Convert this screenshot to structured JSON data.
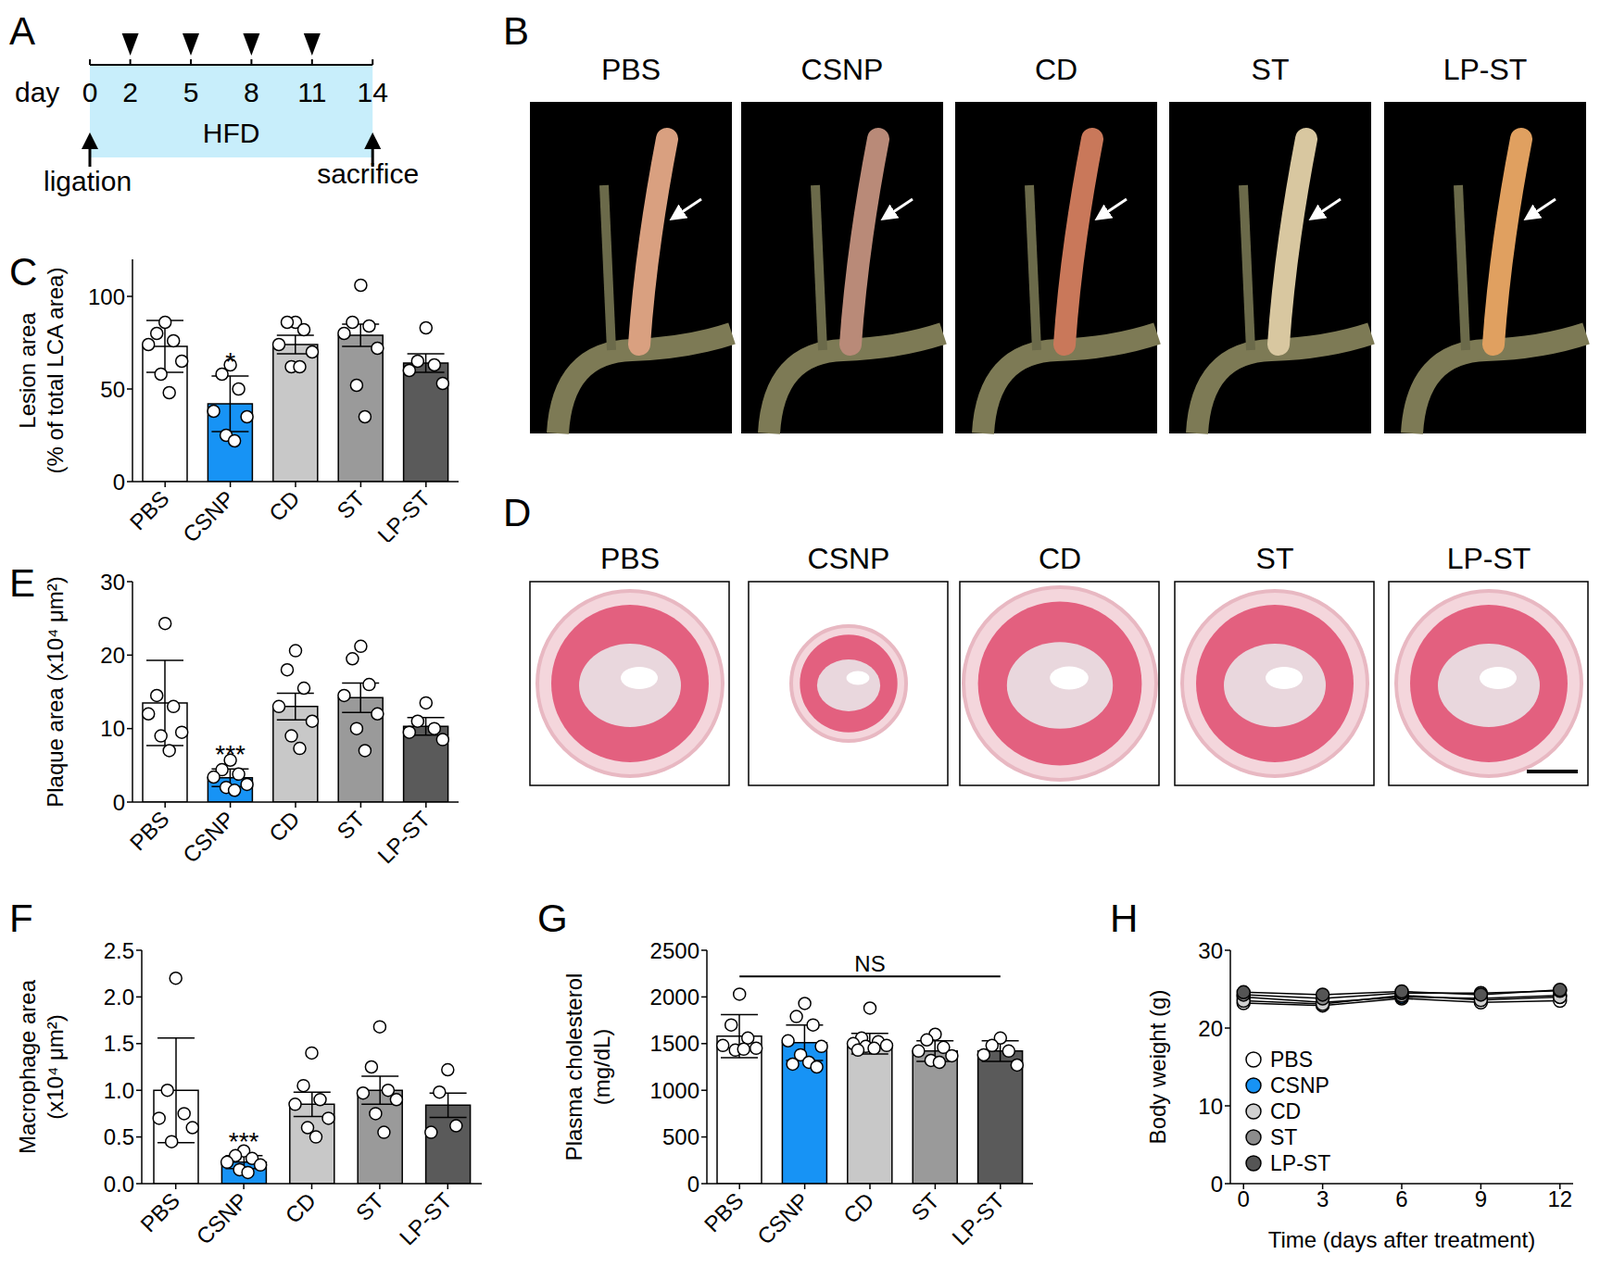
{
  "diagram": {
    "panel": "A",
    "axis_label": "day",
    "days": [
      0,
      2,
      5,
      8,
      11,
      14
    ],
    "injection_days": [
      2,
      5,
      8,
      11
    ],
    "band_label": "HFD",
    "start_label": "ligation",
    "end_label": "sacrifice"
  },
  "images": [
    {
      "panel": "B",
      "titles": [
        "PBS",
        "CSNP",
        "CD",
        "ST",
        "LP-ST"
      ]
    },
    {
      "panel": "D",
      "titles": [
        "PBS",
        "CSNP",
        "CD",
        "ST",
        "LP-ST"
      ]
    }
  ],
  "chart_data": [
    {
      "panel": "C",
      "type": "bar",
      "y_label": [
        "Lesion area",
        "(% of total LCA area)"
      ],
      "categories": [
        "PBS",
        "CSNP",
        "CD",
        "ST",
        "LP-ST"
      ],
      "values": [
        73,
        42,
        74,
        79,
        64
      ],
      "error": [
        14,
        15,
        5,
        6,
        5
      ],
      "points": [
        [
          86,
          80,
          76,
          74,
          65,
          58,
          48
        ],
        [
          63,
          58,
          50,
          38,
          35,
          25,
          22
        ],
        [
          86,
          86,
          82,
          74,
          70,
          62,
          62
        ],
        [
          106,
          86,
          84,
          80,
          72,
          52,
          35
        ],
        [
          83,
          65,
          63,
          60,
          53
        ]
      ],
      "colors": [
        "#ffffff",
        "#1793f5",
        "#c8c8c8",
        "#9a9a9a",
        "#5a5a5a"
      ],
      "significance": [
        null,
        "*",
        null,
        null,
        null
      ],
      "ylim": [
        0,
        120
      ],
      "yticks": [
        0,
        50,
        100
      ]
    },
    {
      "panel": "E",
      "type": "bar",
      "y_label": [
        "Plaque area (x10⁴ μm²)"
      ],
      "categories": [
        "PBS",
        "CSNP",
        "CD",
        "ST",
        "LP-ST"
      ],
      "values": [
        13.5,
        3.3,
        13,
        14.2,
        10.3
      ],
      "error": [
        5.8,
        1.2,
        1.8,
        2,
        1.2
      ],
      "points": [
        [
          24.3,
          14.5,
          13,
          12,
          9.5,
          9,
          7
        ],
        [
          5.7,
          4.4,
          3.8,
          3.4,
          2.4,
          2,
          1.6
        ],
        [
          20.6,
          18,
          15.5,
          13,
          11,
          9,
          7.3
        ],
        [
          21.2,
          19.5,
          16,
          14.5,
          12,
          10,
          7
        ],
        [
          13.5,
          11,
          10,
          9.5,
          8.5
        ]
      ],
      "colors": [
        "#ffffff",
        "#1793f5",
        "#c8c8c8",
        "#9a9a9a",
        "#5a5a5a"
      ],
      "significance": [
        null,
        "***",
        null,
        null,
        null
      ],
      "ylim": [
        0,
        30
      ],
      "yticks": [
        0,
        10,
        20,
        30
      ]
    },
    {
      "panel": "F",
      "type": "bar",
      "y_label": [
        "Macrophage area",
        "(x10⁴ μm²)"
      ],
      "categories": [
        "PBS",
        "CSNP",
        "CD",
        "ST",
        "LP-ST"
      ],
      "values": [
        1.0,
        0.23,
        0.85,
        1.0,
        0.84
      ],
      "error": [
        0.56,
        0.07,
        0.13,
        0.15,
        0.13
      ],
      "points": [
        [
          2.2,
          1.0,
          0.75,
          0.7,
          0.6,
          0.45
        ],
        [
          0.35,
          0.3,
          0.27,
          0.23,
          0.2,
          0.15,
          0.12
        ],
        [
          1.4,
          1.05,
          0.9,
          0.85,
          0.7,
          0.6,
          0.5
        ],
        [
          1.68,
          1.25,
          1.0,
          0.97,
          0.9,
          0.75,
          0.55
        ],
        [
          1.22,
          0.98,
          0.62,
          0.55
        ]
      ],
      "colors": [
        "#ffffff",
        "#1793f5",
        "#c8c8c8",
        "#9a9a9a",
        "#5a5a5a"
      ],
      "significance": [
        null,
        "***",
        null,
        null,
        null
      ],
      "ylim": [
        0,
        2.5
      ],
      "yticks": [
        {
          "value": 0,
          "label": "0.0"
        },
        0.5,
        {
          "value": 1,
          "label": "1.0"
        },
        1.5,
        {
          "value": 2,
          "label": "2.0"
        },
        2.5
      ]
    },
    {
      "panel": "G",
      "type": "bar",
      "y_label": [
        "Plasma cholesterol",
        "(mg/dL)"
      ],
      "categories": [
        "PBS",
        "CSNP",
        "CD",
        "ST",
        "LP-ST"
      ],
      "values": [
        1580,
        1510,
        1500,
        1420,
        1420
      ],
      "error": [
        230,
        190,
        110,
        110,
        110
      ],
      "points": [
        [
          2030,
          1700,
          1560,
          1480,
          1450,
          1430,
          1440
        ],
        [
          1930,
          1790,
          1700,
          1530,
          1470,
          1380,
          1300,
          1280,
          1250
        ],
        [
          1880,
          1560,
          1520,
          1500,
          1480,
          1470,
          1450,
          1430
        ],
        [
          1600,
          1540,
          1460,
          1420,
          1370,
          1320,
          1300
        ],
        [
          1560,
          1480,
          1420,
          1380,
          1270
        ]
      ],
      "colors": [
        "#ffffff",
        "#1793f5",
        "#c8c8c8",
        "#9a9a9a",
        "#5a5a5a"
      ],
      "annotation": {
        "text": "NS",
        "y": 2220,
        "from": "PBS",
        "to": "LP-ST"
      },
      "ylim": [
        0,
        2500
      ],
      "yticks": [
        0,
        500,
        1000,
        1500,
        2000,
        2500
      ]
    },
    {
      "panel": "H",
      "type": "line",
      "x_label": "Time (days after treatment)",
      "y_label": [
        "Body weight (g)"
      ],
      "x": [
        0,
        3,
        6,
        9,
        12
      ],
      "xlim": [
        -0.5,
        12.5
      ],
      "xticks": [
        0,
        3,
        6,
        9,
        12
      ],
      "ylim": [
        0,
        30
      ],
      "yticks": [
        0,
        10,
        20,
        30
      ],
      "legend": "lower left",
      "marker": "circle",
      "series": [
        {
          "name": "PBS",
          "color": "#ffffff",
          "values": [
            23.2,
            22.9,
            23.8,
            23.3,
            23.5
          ]
        },
        {
          "name": "CSNP",
          "color": "#1793f5",
          "values": [
            24.0,
            23.3,
            24.0,
            23.8,
            24.2
          ]
        },
        {
          "name": "CD",
          "color": "#d0d0d0",
          "values": [
            23.5,
            23.1,
            24.2,
            23.6,
            24.0
          ]
        },
        {
          "name": "ST",
          "color": "#8c8c8c",
          "values": [
            24.3,
            23.8,
            24.5,
            24.5,
            24.8
          ]
        },
        {
          "name": "LP-ST",
          "color": "#555555",
          "values": [
            24.6,
            24.3,
            24.7,
            24.3,
            24.9
          ]
        }
      ]
    }
  ]
}
